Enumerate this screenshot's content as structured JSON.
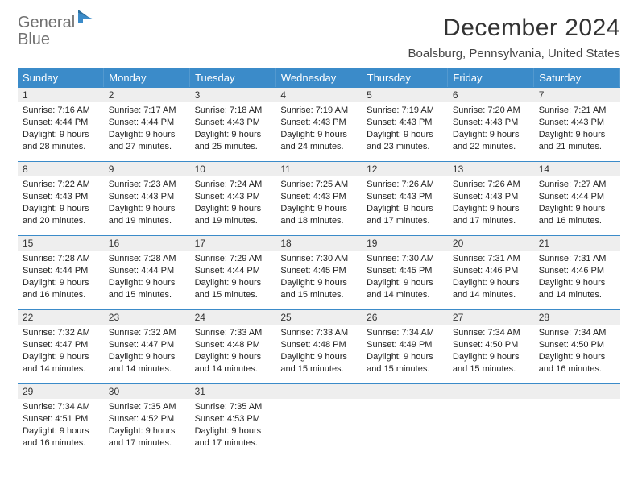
{
  "logo": {
    "text_gray": "General",
    "text_blue": "Blue"
  },
  "header": {
    "month_title": "December 2024",
    "location": "Boalsburg, Pennsylvania, United States"
  },
  "colors": {
    "header_blue": "#3b8bc9",
    "daynum_bg": "#eeeeee",
    "border_blue": "#3b8bc9",
    "text": "#222222",
    "logo_gray": "#707070"
  },
  "weekdays": [
    "Sunday",
    "Monday",
    "Tuesday",
    "Wednesday",
    "Thursday",
    "Friday",
    "Saturday"
  ],
  "days": [
    {
      "n": "1",
      "sunrise": "7:16 AM",
      "sunset": "4:44 PM",
      "daylight": "9 hours and 28 minutes."
    },
    {
      "n": "2",
      "sunrise": "7:17 AM",
      "sunset": "4:44 PM",
      "daylight": "9 hours and 27 minutes."
    },
    {
      "n": "3",
      "sunrise": "7:18 AM",
      "sunset": "4:43 PM",
      "daylight": "9 hours and 25 minutes."
    },
    {
      "n": "4",
      "sunrise": "7:19 AM",
      "sunset": "4:43 PM",
      "daylight": "9 hours and 24 minutes."
    },
    {
      "n": "5",
      "sunrise": "7:19 AM",
      "sunset": "4:43 PM",
      "daylight": "9 hours and 23 minutes."
    },
    {
      "n": "6",
      "sunrise": "7:20 AM",
      "sunset": "4:43 PM",
      "daylight": "9 hours and 22 minutes."
    },
    {
      "n": "7",
      "sunrise": "7:21 AM",
      "sunset": "4:43 PM",
      "daylight": "9 hours and 21 minutes."
    },
    {
      "n": "8",
      "sunrise": "7:22 AM",
      "sunset": "4:43 PM",
      "daylight": "9 hours and 20 minutes."
    },
    {
      "n": "9",
      "sunrise": "7:23 AM",
      "sunset": "4:43 PM",
      "daylight": "9 hours and 19 minutes."
    },
    {
      "n": "10",
      "sunrise": "7:24 AM",
      "sunset": "4:43 PM",
      "daylight": "9 hours and 19 minutes."
    },
    {
      "n": "11",
      "sunrise": "7:25 AM",
      "sunset": "4:43 PM",
      "daylight": "9 hours and 18 minutes."
    },
    {
      "n": "12",
      "sunrise": "7:26 AM",
      "sunset": "4:43 PM",
      "daylight": "9 hours and 17 minutes."
    },
    {
      "n": "13",
      "sunrise": "7:26 AM",
      "sunset": "4:43 PM",
      "daylight": "9 hours and 17 minutes."
    },
    {
      "n": "14",
      "sunrise": "7:27 AM",
      "sunset": "4:44 PM",
      "daylight": "9 hours and 16 minutes."
    },
    {
      "n": "15",
      "sunrise": "7:28 AM",
      "sunset": "4:44 PM",
      "daylight": "9 hours and 16 minutes."
    },
    {
      "n": "16",
      "sunrise": "7:28 AM",
      "sunset": "4:44 PM",
      "daylight": "9 hours and 15 minutes."
    },
    {
      "n": "17",
      "sunrise": "7:29 AM",
      "sunset": "4:44 PM",
      "daylight": "9 hours and 15 minutes."
    },
    {
      "n": "18",
      "sunrise": "7:30 AM",
      "sunset": "4:45 PM",
      "daylight": "9 hours and 15 minutes."
    },
    {
      "n": "19",
      "sunrise": "7:30 AM",
      "sunset": "4:45 PM",
      "daylight": "9 hours and 14 minutes."
    },
    {
      "n": "20",
      "sunrise": "7:31 AM",
      "sunset": "4:46 PM",
      "daylight": "9 hours and 14 minutes."
    },
    {
      "n": "21",
      "sunrise": "7:31 AM",
      "sunset": "4:46 PM",
      "daylight": "9 hours and 14 minutes."
    },
    {
      "n": "22",
      "sunrise": "7:32 AM",
      "sunset": "4:47 PM",
      "daylight": "9 hours and 14 minutes."
    },
    {
      "n": "23",
      "sunrise": "7:32 AM",
      "sunset": "4:47 PM",
      "daylight": "9 hours and 14 minutes."
    },
    {
      "n": "24",
      "sunrise": "7:33 AM",
      "sunset": "4:48 PM",
      "daylight": "9 hours and 14 minutes."
    },
    {
      "n": "25",
      "sunrise": "7:33 AM",
      "sunset": "4:48 PM",
      "daylight": "9 hours and 15 minutes."
    },
    {
      "n": "26",
      "sunrise": "7:34 AM",
      "sunset": "4:49 PM",
      "daylight": "9 hours and 15 minutes."
    },
    {
      "n": "27",
      "sunrise": "7:34 AM",
      "sunset": "4:50 PM",
      "daylight": "9 hours and 15 minutes."
    },
    {
      "n": "28",
      "sunrise": "7:34 AM",
      "sunset": "4:50 PM",
      "daylight": "9 hours and 16 minutes."
    },
    {
      "n": "29",
      "sunrise": "7:34 AM",
      "sunset": "4:51 PM",
      "daylight": "9 hours and 16 minutes."
    },
    {
      "n": "30",
      "sunrise": "7:35 AM",
      "sunset": "4:52 PM",
      "daylight": "9 hours and 17 minutes."
    },
    {
      "n": "31",
      "sunrise": "7:35 AM",
      "sunset": "4:53 PM",
      "daylight": "9 hours and 17 minutes."
    }
  ],
  "labels": {
    "sunrise": "Sunrise:",
    "sunset": "Sunset:",
    "daylight": "Daylight:"
  },
  "layout": {
    "first_weekday_offset": 0,
    "total_cells": 35
  }
}
